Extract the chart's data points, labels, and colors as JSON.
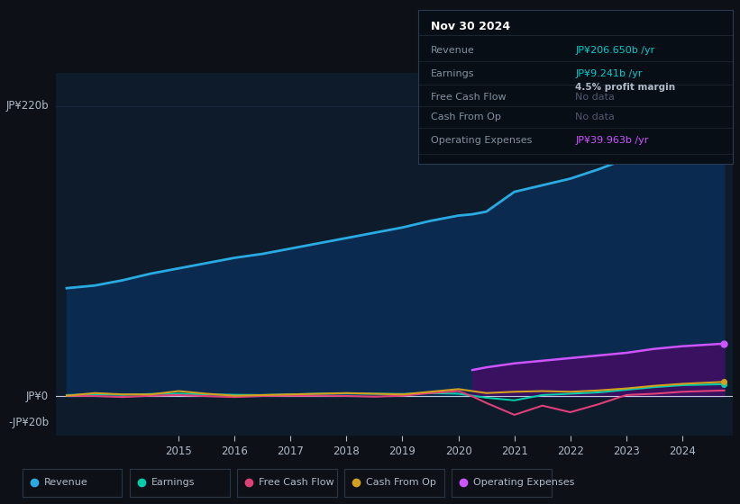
{
  "background_color": "#0d1117",
  "plot_bg_color": "#0d1b2a",
  "title_box": {
    "date": "Nov 30 2024",
    "revenue_label": "Revenue",
    "revenue_value": "JP¥206.650b /yr",
    "earnings_label": "Earnings",
    "earnings_value": "JP¥9.241b /yr",
    "margin_text": "4.5% profit margin",
    "fcf_label": "Free Cash Flow",
    "fcf_value": "No data",
    "cfop_label": "Cash From Op",
    "cfop_value": "No data",
    "opex_label": "Operating Expenses",
    "opex_value": "JP¥39.963b /yr"
  },
  "ylim": [
    -30,
    245
  ],
  "ytick_220_val": 220,
  "ytick_0_val": 0,
  "ytick_neg20_val": -20,
  "ytick_220_label": "JP¥220b",
  "ytick_0_label": "JP¥0",
  "ytick_neg20_label": "-JP¥20b",
  "years": [
    2013.0,
    2013.5,
    2014.0,
    2014.5,
    2015.0,
    2015.5,
    2016.0,
    2016.5,
    2017.0,
    2017.5,
    2018.0,
    2018.5,
    2019.0,
    2019.5,
    2020.0,
    2020.25,
    2020.5,
    2021.0,
    2021.5,
    2022.0,
    2022.5,
    2023.0,
    2023.5,
    2024.0,
    2024.75
  ],
  "revenue": [
    82,
    84,
    88,
    93,
    97,
    101,
    105,
    108,
    112,
    116,
    120,
    124,
    128,
    133,
    137,
    138,
    140,
    155,
    160,
    165,
    172,
    180,
    190,
    200,
    206.65
  ],
  "earnings": [
    1.0,
    1.5,
    1.2,
    1.8,
    2.0,
    1.5,
    1.2,
    1.0,
    1.5,
    2.0,
    2.2,
    2.0,
    1.8,
    2.5,
    2.0,
    0.5,
    -1.0,
    -3.0,
    1.0,
    2.0,
    3.0,
    5.0,
    7.0,
    8.5,
    9.241
  ],
  "free_cash_flow": [
    0.5,
    0.3,
    -0.5,
    0.5,
    1.0,
    0.2,
    -0.5,
    0.3,
    0.5,
    0.5,
    0.3,
    -0.2,
    0.5,
    2.5,
    4.0,
    0.0,
    -5.0,
    -14.0,
    -7.0,
    -12.0,
    -6.0,
    1.0,
    2.0,
    3.5,
    4.5
  ],
  "cash_from_op": [
    0.5,
    2.5,
    1.5,
    1.5,
    4.0,
    2.0,
    0.5,
    1.0,
    1.5,
    2.0,
    2.5,
    2.0,
    1.5,
    3.5,
    5.5,
    4.0,
    2.5,
    3.5,
    4.0,
    3.5,
    4.5,
    6.0,
    8.0,
    9.5,
    11.0
  ],
  "operating_expenses": [
    null,
    null,
    null,
    null,
    null,
    null,
    null,
    null,
    null,
    null,
    null,
    null,
    null,
    null,
    null,
    20.0,
    22.0,
    25.0,
    27.0,
    29.0,
    31.0,
    33.0,
    36.0,
    38.0,
    39.963
  ],
  "colors": {
    "revenue": "#29abe2",
    "earnings": "#00ccaa",
    "free_cash_flow": "#e0407a",
    "cash_from_op": "#d4a020",
    "operating_expenses": "#cc55ff",
    "revenue_fill": "#0a2a50",
    "opex_fill": "#3a1060"
  },
  "legend_items": [
    "Revenue",
    "Earnings",
    "Free Cash Flow",
    "Cash From Op",
    "Operating Expenses"
  ],
  "legend_colors": [
    "#29abe2",
    "#00ccaa",
    "#e0407a",
    "#d4a020",
    "#cc55ff"
  ],
  "grid_color": "#1a2a40",
  "text_color": "#b0bac8",
  "xlabel_years": [
    2015,
    2016,
    2017,
    2018,
    2019,
    2020,
    2021,
    2022,
    2023,
    2024
  ],
  "box_bg": "#080e16",
  "box_border": "#2a3a50",
  "box_label_color": "#8090a0",
  "box_value_cyan": "#00cccc",
  "box_value_grey": "#505870",
  "box_value_purple": "#cc55ff",
  "box_separator_color": "#1a2530"
}
